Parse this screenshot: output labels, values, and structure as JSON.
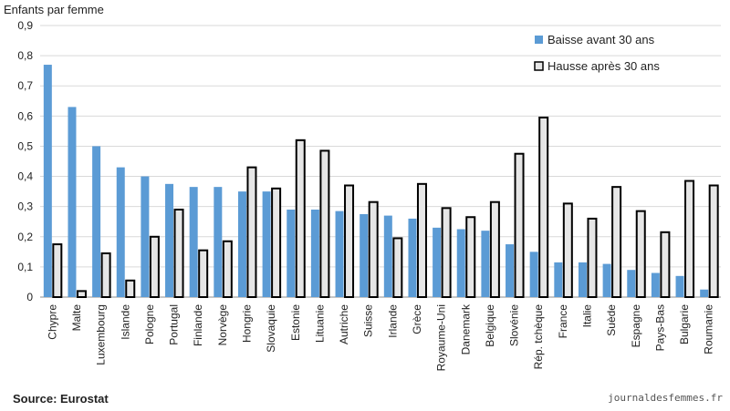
{
  "chart_data": {
    "type": "bar",
    "ylabel": "Enfants par femme",
    "ylim": [
      0,
      0.9
    ],
    "yticks": [
      "0",
      "0,1",
      "0,2",
      "0,3",
      "0,4",
      "0,5",
      "0,6",
      "0,7",
      "0,8",
      "0,9"
    ],
    "grid": true,
    "legend_position": "top-right",
    "categories": [
      "Chypre",
      "Malte",
      "Luxembourg",
      "Islande",
      "Pologne",
      "Portugal",
      "Finlande",
      "Norvège",
      "Hongrie",
      "Slovaquie",
      "Estonie",
      "Lituanie",
      "Autriche",
      "Suisse",
      "Irlande",
      "Grèce",
      "Royaume-Uni",
      "Danemark",
      "Belgique",
      "Slovénie",
      "Rép. tchèque",
      "France",
      "Italie",
      "Suède",
      "Espagne",
      "Pays-Bas",
      "Bulgarie",
      "Roumanie"
    ],
    "series": [
      {
        "name": "Baisse avant 30 ans",
        "color": "#5b9bd5",
        "values": [
          0.77,
          0.63,
          0.5,
          0.43,
          0.4,
          0.375,
          0.365,
          0.365,
          0.35,
          0.35,
          0.29,
          0.29,
          0.285,
          0.275,
          0.27,
          0.26,
          0.23,
          0.225,
          0.22,
          0.175,
          0.15,
          0.115,
          0.115,
          0.11,
          0.09,
          0.08,
          0.07,
          0.025
        ]
      },
      {
        "name": "Hausse après 30 ans",
        "color": "#e6e6e6",
        "values": [
          0.175,
          0.02,
          0.145,
          0.055,
          0.2,
          0.29,
          0.155,
          0.185,
          0.43,
          0.36,
          0.52,
          0.485,
          0.37,
          0.315,
          0.195,
          0.375,
          0.295,
          0.265,
          0.315,
          0.475,
          0.595,
          0.31,
          0.26,
          0.365,
          0.285,
          0.215,
          0.385,
          0.37
        ]
      }
    ]
  },
  "footer": {
    "source": "Source: Eurostat",
    "credit": "journaldesfemmes.fr"
  }
}
